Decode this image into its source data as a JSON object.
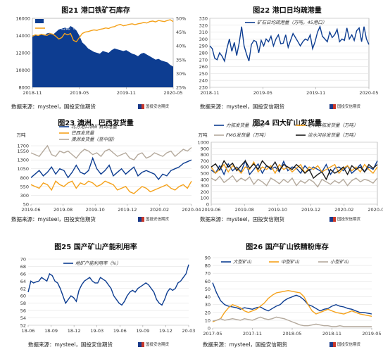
{
  "brand": "国投安信期货",
  "chart_data": [
    {
      "id": "c21",
      "type": "area",
      "title": "图21  港口铁矿石库存",
      "source": "数据来源：mysteel，国投安信期货",
      "x_ticks": [
        "2018-11",
        "2019-05",
        "2019-11",
        "2020-05"
      ],
      "ylim": [
        8000,
        16000
      ],
      "y_ticks": [
        "8000",
        "10000",
        "12000",
        "14000",
        "16000"
      ],
      "y2lim": [
        25,
        50
      ],
      "y2_ticks": [
        "25%",
        "30%",
        "35%",
        "40%",
        "45%",
        "50%"
      ],
      "legend": [
        "港口铁矿石库存（万吨）",
        "疏港矿占比（%）"
      ],
      "colors": [
        "#0d3d91",
        "#f5a21b"
      ],
      "series": [
        {
          "name": "港口铁矿石库存（万吨）",
          "axis": "left",
          "kind": "area",
          "values": [
            14000,
            14100,
            13950,
            14200,
            14000,
            14250,
            14300,
            14100,
            14400,
            14700,
            14800,
            14950,
            14800,
            15100,
            14900,
            14600,
            14000,
            13200,
            12900,
            12500,
            12300,
            12100,
            12000,
            11900,
            12200,
            12100,
            12000,
            12300,
            12500,
            12400,
            12300,
            12200,
            12300,
            12100,
            11900,
            11800,
            11600,
            11900,
            12000,
            11800,
            11600,
            11400,
            11200,
            11300,
            11100,
            11000,
            10900,
            10600,
            10400
          ]
        },
        {
          "name": "疏港矿占比（%）",
          "axis": "right",
          "kind": "line",
          "values": [
            43.5,
            44,
            43.8,
            44.2,
            44,
            43.8,
            44.5,
            44.2,
            43.5,
            42.5,
            43,
            44.5,
            44,
            44.5,
            42,
            41.5,
            43,
            44.5,
            45,
            45.2,
            45.5,
            45.8,
            45.6,
            46,
            46.2,
            46.5,
            46.3,
            46.8,
            47,
            47.5,
            47.8,
            47.3,
            47.5,
            47.8,
            48,
            47.7,
            48,
            48.2,
            48.5,
            48.3,
            48.8,
            49,
            48.7,
            49.2,
            49,
            48.8,
            49.2,
            49.5,
            48.8
          ]
        }
      ]
    },
    {
      "id": "c22",
      "type": "line",
      "title": "图22  港口日均疏港量",
      "source": "数据来源：mysteel，国投安信期货",
      "x_ticks": [
        "2018-11",
        "2019-05",
        "2019-11",
        "2020-05"
      ],
      "ylim": [
        230,
        330
      ],
      "y_ticks": [
        "230",
        "240",
        "250",
        "260",
        "270",
        "280",
        "290",
        "300",
        "310",
        "320",
        "330"
      ],
      "legend": [
        "矿石日均疏港量（万吨，45港口）"
      ],
      "colors": [
        "#0d3d91"
      ],
      "series": [
        {
          "name": "矿石日均疏港量（万吨，45港口）",
          "values": [
            290,
            286,
            272,
            270,
            280,
            275,
            268,
            286,
            300,
            282,
            295,
            276,
            294,
            318,
            290,
            278,
            268,
            292,
            298,
            296,
            280,
            298,
            290,
            300,
            296,
            304,
            290,
            300,
            306,
            293,
            294,
            306,
            288,
            298,
            308,
            302,
            296,
            290,
            296,
            300,
            298,
            306,
            286,
            296,
            310,
            318,
            304,
            300,
            296,
            310,
            302,
            306,
            314,
            296,
            300,
            298,
            316,
            300,
            306,
            298,
            312,
            316,
            296,
            318,
            300,
            292
          ]
        }
      ]
    },
    {
      "id": "c23",
      "type": "line",
      "title": "图23  澳洲、巴西发货量",
      "source": "数据来源：mysteel，国投安信期货",
      "unit": "万吨",
      "x_ticks": [
        "2019-06",
        "2019-08",
        "2019-10",
        "2019-12",
        "2020-02",
        "2020-04"
      ],
      "ylim": [
        50,
        1800
      ],
      "y_ticks": [
        "50",
        "300",
        "550",
        "800",
        "1050",
        "1300",
        "1550",
        "1700"
      ],
      "legend": [
        "北方港口铁矿石到港量",
        "巴西发货量",
        "澳洲发货量（至中国）"
      ],
      "colors": [
        "#0d3d91",
        "#f5a21b",
        "#b4a99c"
      ],
      "series": [
        {
          "name": "北方港口铁矿石到港量",
          "values": [
            800,
            900,
            1000,
            850,
            950,
            1100,
            900,
            1050,
            1000,
            800,
            950,
            1150,
            950,
            900,
            1000,
            1350,
            1050,
            900,
            1000,
            1150,
            850,
            950,
            1050,
            900,
            1000,
            1100,
            850,
            950,
            1000,
            950,
            900,
            750,
            900,
            850,
            1000,
            1050,
            1100,
            1200,
            1250,
            1300
          ]
        },
        {
          "name": "巴西发货量",
          "values": [
            600,
            550,
            500,
            650,
            600,
            450,
            700,
            600,
            550,
            650,
            700,
            500,
            650,
            600,
            700,
            650,
            550,
            600,
            700,
            650,
            600,
            450,
            500,
            550,
            400,
            350,
            450,
            550,
            500,
            400,
            450,
            500,
            550,
            600,
            500,
            450,
            550,
            600,
            500,
            700
          ]
        },
        {
          "name": "澳洲发货量（至中国）",
          "values": [
            1500,
            1450,
            1400,
            1550,
            1700,
            1450,
            1400,
            1550,
            1500,
            1550,
            1450,
            1350,
            1500,
            1600,
            1550,
            1450,
            1500,
            1400,
            1550,
            1600,
            1500,
            1400,
            1450,
            1500,
            1350,
            1300,
            1450,
            1500,
            1350,
            1400,
            1500,
            1450,
            1400,
            1500,
            1550,
            1400,
            1500,
            1600,
            1550,
            1650
          ]
        }
      ]
    },
    {
      "id": "c24",
      "type": "line",
      "title": "图24  四大矿山发货量",
      "source": "数据来源：mysteel，国投安信期货",
      "unit": "万吨",
      "x_ticks": [
        "2019-06",
        "2019-08",
        "2019-10",
        "2019-12",
        "2020-02",
        "2020-04"
      ],
      "ylim": [
        0,
        1000
      ],
      "y_ticks": [
        "0",
        "100",
        "200",
        "300",
        "400",
        "500",
        "600",
        "700",
        "800",
        "900",
        "1000"
      ],
      "legend": [
        "力拓发货量（万吨）",
        "必和必拓发货量（万吨）",
        "FMG发货量（万吨）",
        "淡水河谷发货量（万吨）"
      ],
      "colors": [
        "#0d3d91",
        "#f5a21b",
        "#b4a99c",
        "#1a1a1a"
      ],
      "series": [
        {
          "name": "力拓发货量（万吨）",
          "values": [
            550,
            500,
            620,
            480,
            650,
            540,
            600,
            520,
            700,
            480,
            560,
            650,
            500,
            620,
            560,
            600,
            520,
            690,
            540,
            600,
            580,
            500,
            620,
            540,
            600,
            560,
            520,
            640,
            480,
            580,
            600,
            540,
            620,
            500,
            560,
            640,
            520,
            600,
            560,
            700
          ]
        },
        {
          "name": "必和必拓发货量（万吨）",
          "values": [
            600,
            500,
            560,
            640,
            520,
            620,
            580,
            500,
            600,
            560,
            680,
            520,
            600,
            560,
            620,
            500,
            640,
            560,
            600,
            520,
            580,
            640,
            500,
            600,
            560,
            620,
            520,
            560,
            600,
            640,
            500,
            580,
            620,
            540,
            600,
            520,
            640,
            560,
            500,
            600
          ]
        },
        {
          "name": "FMG发货量（万吨）",
          "values": [
            420,
            380,
            450,
            350,
            400,
            460,
            360,
            420,
            380,
            440,
            320,
            400,
            360,
            300,
            420,
            380,
            330,
            400,
            350,
            420,
            300,
            380,
            340,
            400,
            360,
            280,
            400,
            360,
            320,
            380,
            340,
            400,
            300,
            380,
            420,
            360,
            400,
            380,
            340,
            420
          ]
        },
        {
          "name": "淡水河谷发货量（万吨）",
          "values": [
            600,
            650,
            550,
            700,
            600,
            660,
            540,
            620,
            700,
            580,
            650,
            560,
            700,
            620,
            580,
            680,
            540,
            640,
            600,
            560,
            640,
            580,
            500,
            560,
            420,
            480,
            520,
            400,
            560,
            500,
            540,
            600,
            480,
            620,
            560,
            600,
            520,
            640,
            580,
            640
          ]
        }
      ]
    },
    {
      "id": "c25",
      "type": "line",
      "title": "图25  国产矿山产能利用率",
      "source": "数据来源：mysteel，国投安信期货",
      "x_ticks": [
        "18-06",
        "18-09",
        "18-12",
        "19-03",
        "19-06",
        "19-09",
        "19-12",
        "20-03"
      ],
      "ylim": [
        52,
        70
      ],
      "y_ticks": [
        "52",
        "54",
        "56",
        "58",
        "60",
        "62",
        "64",
        "66",
        "68",
        "70"
      ],
      "legend": [
        "地矿产能利用率（%）"
      ],
      "colors": [
        "#0d3d91"
      ],
      "series": [
        {
          "name": "地矿产能利用率（%）",
          "values": [
            61,
            64,
            63.5,
            63.8,
            64,
            65,
            64.5,
            64,
            66,
            65.5,
            64,
            63.5,
            62,
            60,
            58,
            59,
            60,
            59.5,
            58.5,
            61.5,
            63,
            64,
            64.5,
            65,
            64,
            63.5,
            63.5,
            65,
            64.5,
            64,
            63,
            62,
            60,
            59,
            58,
            57.5,
            58.5,
            60,
            61,
            61.5,
            61,
            62,
            62.5,
            63,
            63.5,
            63,
            62,
            61,
            59,
            58,
            57.5,
            59,
            61,
            62,
            61.5,
            62,
            63.5,
            64,
            65,
            66,
            68.5
          ]
        }
      ]
    },
    {
      "id": "c26",
      "type": "line",
      "title": "图26  国产矿山铁精粉库存",
      "source": "数据来源：mysteel，国投安信期货",
      "x_ticks": [
        "2017-05",
        "2017-11",
        "2018-05",
        "2018-11",
        "2019-05"
      ],
      "ylim": [
        0,
        90
      ],
      "y_ticks": [
        "0",
        "10",
        "20",
        "30",
        "40",
        "50",
        "60",
        "70",
        "80",
        "90"
      ],
      "legend": [
        "大型矿山",
        "中型矿山",
        "小型矿山"
      ],
      "colors": [
        "#0d3d91",
        "#f5a21b",
        "#b4a99c"
      ],
      "series": [
        {
          "name": "大型矿山",
          "values": [
            58,
            45,
            35,
            30,
            28,
            27,
            26,
            24,
            26,
            25,
            24,
            26,
            27,
            24,
            22,
            25,
            28,
            30,
            35,
            38,
            40,
            42,
            40,
            36,
            30,
            28,
            25,
            22,
            24,
            25,
            28,
            30,
            28,
            27,
            25,
            24,
            22,
            20,
            20,
            19,
            18
          ]
        },
        {
          "name": "中型矿山",
          "values": [
            8,
            10,
            12,
            20,
            26,
            30,
            28,
            26,
            22,
            20,
            22,
            24,
            28,
            32,
            38,
            42,
            45,
            46,
            47,
            48,
            47,
            46,
            45,
            40,
            30,
            22,
            18,
            20,
            22,
            24,
            22,
            20,
            19,
            18,
            20,
            22,
            20,
            18,
            17,
            16,
            15
          ]
        },
        {
          "name": "小型矿山",
          "values": [
            9,
            10,
            12,
            10,
            11,
            12,
            11,
            10,
            12,
            11,
            10,
            12,
            14,
            12,
            11,
            12,
            14,
            13,
            12,
            10,
            8,
            6,
            4,
            3,
            3,
            4,
            5,
            4,
            3,
            3,
            2,
            2,
            3,
            2,
            2,
            2,
            2,
            2,
            2,
            2,
            2
          ]
        }
      ]
    }
  ]
}
